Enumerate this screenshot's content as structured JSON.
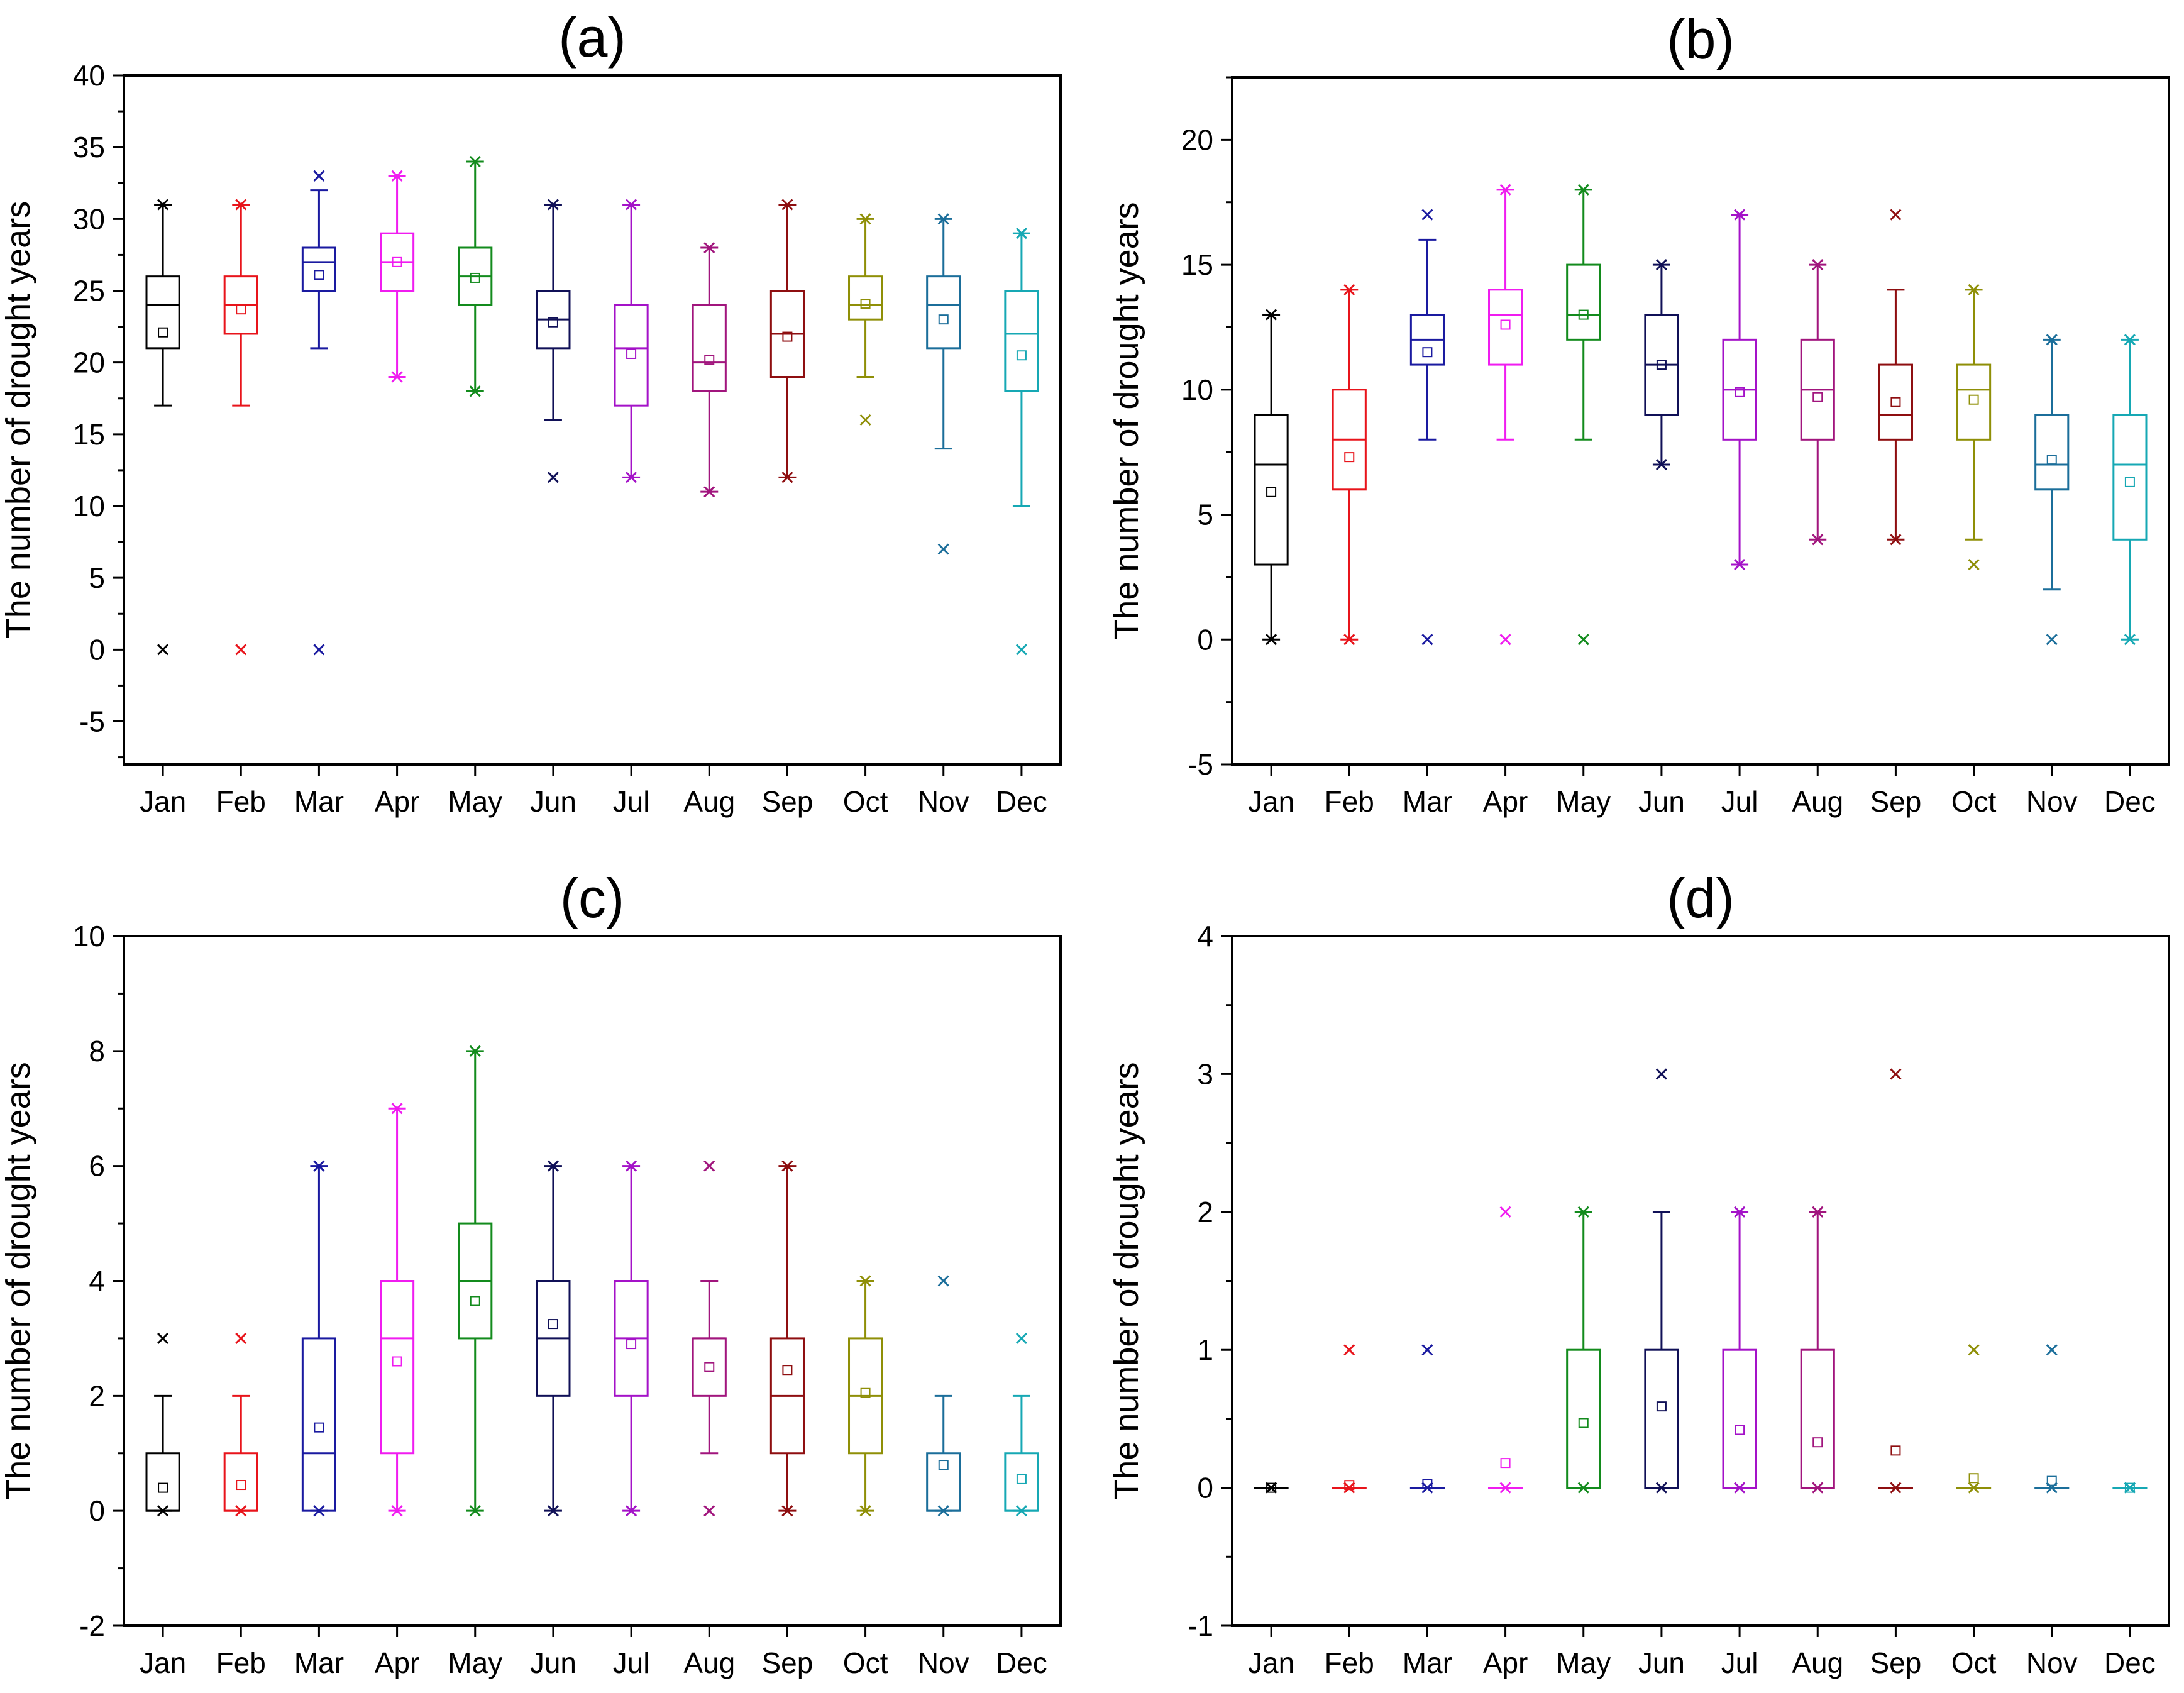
{
  "months": [
    "Jan",
    "Feb",
    "Mar",
    "Apr",
    "May",
    "Jun",
    "Jul",
    "Aug",
    "Sep",
    "Oct",
    "Nov",
    "Dec"
  ],
  "month_colors": [
    "#000000",
    "#e8141b",
    "#1a1aa0",
    "#f01cf0",
    "#138b1d",
    "#101057",
    "#a412c8",
    "#a1157d",
    "#8e0e10",
    "#8f8f07",
    "#1b6e9a",
    "#16a8b4"
  ],
  "chart_data": [
    {
      "type": "box",
      "title": "(a)",
      "ylabel": "The number of drought years",
      "ylim": [
        -8,
        40
      ],
      "yticks": [
        -5,
        0,
        5,
        10,
        15,
        20,
        25,
        30,
        35,
        40
      ],
      "boxes": [
        {
          "category": "Jan",
          "q1": 21,
          "median": 24,
          "q3": 26,
          "whisker_low": 17,
          "whisker_high": 31,
          "mean": 22.1,
          "extremes": [
            0,
            31
          ]
        },
        {
          "category": "Feb",
          "q1": 22,
          "median": 24,
          "q3": 26,
          "whisker_low": 17,
          "whisker_high": 31,
          "mean": 23.7,
          "extremes": [
            0,
            31
          ]
        },
        {
          "category": "Mar",
          "q1": 25,
          "median": 27,
          "q3": 28,
          "whisker_low": 21,
          "whisker_high": 32,
          "mean": 26.1,
          "extremes": [
            0,
            33
          ]
        },
        {
          "category": "Apr",
          "q1": 25,
          "median": 27,
          "q3": 29,
          "whisker_low": 19,
          "whisker_high": 33,
          "mean": 27,
          "extremes": [
            19,
            33
          ]
        },
        {
          "category": "May",
          "q1": 24,
          "median": 26,
          "q3": 28,
          "whisker_low": 18,
          "whisker_high": 34,
          "mean": 25.9,
          "extremes": [
            18,
            34
          ]
        },
        {
          "category": "Jun",
          "q1": 21,
          "median": 23,
          "q3": 25,
          "whisker_low": 16,
          "whisker_high": 31,
          "mean": 22.8,
          "extremes": [
            12,
            31
          ]
        },
        {
          "category": "Jul",
          "q1": 17,
          "median": 21,
          "q3": 24,
          "whisker_low": 12,
          "whisker_high": 31,
          "mean": 20.6,
          "extremes": [
            12,
            31
          ]
        },
        {
          "category": "Aug",
          "q1": 18,
          "median": 20,
          "q3": 24,
          "whisker_low": 11,
          "whisker_high": 28,
          "mean": 20.2,
          "extremes": [
            11,
            28
          ]
        },
        {
          "category": "Sep",
          "q1": 19,
          "median": 22,
          "q3": 25,
          "whisker_low": 12,
          "whisker_high": 31,
          "mean": 21.8,
          "extremes": [
            12,
            31
          ]
        },
        {
          "category": "Oct",
          "q1": 23,
          "median": 24,
          "q3": 26,
          "whisker_low": 19,
          "whisker_high": 30,
          "mean": 24.1,
          "extremes": [
            16,
            30
          ]
        },
        {
          "category": "Nov",
          "q1": 21,
          "median": 24,
          "q3": 26,
          "whisker_low": 14,
          "whisker_high": 30,
          "mean": 23,
          "extremes": [
            7,
            30
          ]
        },
        {
          "category": "Dec",
          "q1": 18,
          "median": 22,
          "q3": 25,
          "whisker_low": 10,
          "whisker_high": 29,
          "mean": 20.5,
          "extremes": [
            0,
            29
          ]
        }
      ]
    },
    {
      "type": "box",
      "title": "(b)",
      "ylabel": "The number of drought years",
      "ylim": [
        -5,
        22.5
      ],
      "yticks": [
        -5,
        0,
        5,
        10,
        15,
        20
      ],
      "boxes": [
        {
          "category": "Jan",
          "q1": 3,
          "median": 7,
          "q3": 9,
          "whisker_low": 0,
          "whisker_high": 13,
          "mean": 5.9,
          "extremes": [
            0,
            13
          ]
        },
        {
          "category": "Feb",
          "q1": 6,
          "median": 8,
          "q3": 10,
          "whisker_low": 0,
          "whisker_high": 14,
          "mean": 7.3,
          "extremes": [
            0,
            14
          ]
        },
        {
          "category": "Mar",
          "q1": 11,
          "median": 12,
          "q3": 13,
          "whisker_low": 8,
          "whisker_high": 16,
          "mean": 11.5,
          "extremes": [
            0,
            17
          ]
        },
        {
          "category": "Apr",
          "q1": 11,
          "median": 13,
          "q3": 14,
          "whisker_low": 8,
          "whisker_high": 18,
          "mean": 12.6,
          "extremes": [
            0,
            18
          ]
        },
        {
          "category": "May",
          "q1": 12,
          "median": 13,
          "q3": 15,
          "whisker_low": 8,
          "whisker_high": 18,
          "mean": 13,
          "extremes": [
            0,
            18
          ]
        },
        {
          "category": "Jun",
          "q1": 9,
          "median": 11,
          "q3": 13,
          "whisker_low": 7,
          "whisker_high": 15,
          "mean": 11,
          "extremes": [
            7,
            15
          ]
        },
        {
          "category": "Jul",
          "q1": 8,
          "median": 10,
          "q3": 12,
          "whisker_low": 3,
          "whisker_high": 17,
          "mean": 9.9,
          "extremes": [
            3,
            17
          ]
        },
        {
          "category": "Aug",
          "q1": 8,
          "median": 10,
          "q3": 12,
          "whisker_low": 4,
          "whisker_high": 15,
          "mean": 9.7,
          "extremes": [
            4,
            15
          ]
        },
        {
          "category": "Sep",
          "q1": 8,
          "median": 9,
          "q3": 11,
          "whisker_low": 4,
          "whisker_high": 14,
          "mean": 9.5,
          "extremes": [
            4,
            17
          ]
        },
        {
          "category": "Oct",
          "q1": 8,
          "median": 10,
          "q3": 11,
          "whisker_low": 4,
          "whisker_high": 14,
          "mean": 9.6,
          "extremes": [
            3,
            14
          ]
        },
        {
          "category": "Nov",
          "q1": 6,
          "median": 7,
          "q3": 9,
          "whisker_low": 2,
          "whisker_high": 12,
          "mean": 7.2,
          "extremes": [
            0,
            12
          ]
        },
        {
          "category": "Dec",
          "q1": 4,
          "median": 7,
          "q3": 9,
          "whisker_low": 0,
          "whisker_high": 12,
          "mean": 6.3,
          "extremes": [
            0,
            12
          ]
        }
      ]
    },
    {
      "type": "box",
      "title": "(c)",
      "ylabel": "The number of drought years",
      "ylim": [
        -2,
        10
      ],
      "yticks": [
        -2,
        0,
        2,
        4,
        6,
        8,
        10
      ],
      "boxes": [
        {
          "category": "Jan",
          "q1": 0,
          "median": 0,
          "q3": 1,
          "whisker_low": 0,
          "whisker_high": 2,
          "mean": 0.4,
          "extremes": [
            0,
            3
          ]
        },
        {
          "category": "Feb",
          "q1": 0,
          "median": 0,
          "q3": 1,
          "whisker_low": 0,
          "whisker_high": 2,
          "mean": 0.45,
          "extremes": [
            0,
            3
          ]
        },
        {
          "category": "Mar",
          "q1": 0,
          "median": 1,
          "q3": 3,
          "whisker_low": 0,
          "whisker_high": 6,
          "mean": 1.45,
          "extremes": [
            0,
            6
          ]
        },
        {
          "category": "Apr",
          "q1": 1,
          "median": 3,
          "q3": 4,
          "whisker_low": 0,
          "whisker_high": 7,
          "mean": 2.6,
          "extremes": [
            0,
            7
          ]
        },
        {
          "category": "May",
          "q1": 3,
          "median": 4,
          "q3": 5,
          "whisker_low": 0,
          "whisker_high": 8,
          "mean": 3.65,
          "extremes": [
            0,
            8
          ]
        },
        {
          "category": "Jun",
          "q1": 2,
          "median": 3,
          "q3": 4,
          "whisker_low": 0,
          "whisker_high": 6,
          "mean": 3.25,
          "extremes": [
            0,
            6
          ]
        },
        {
          "category": "Jul",
          "q1": 2,
          "median": 3,
          "q3": 4,
          "whisker_low": 0,
          "whisker_high": 6,
          "mean": 2.9,
          "extremes": [
            0,
            6
          ]
        },
        {
          "category": "Aug",
          "q1": 2,
          "median": 3,
          "q3": 3,
          "whisker_low": 1,
          "whisker_high": 4,
          "mean": 2.5,
          "extremes": [
            0,
            6
          ]
        },
        {
          "category": "Sep",
          "q1": 1,
          "median": 2,
          "q3": 3,
          "whisker_low": 0,
          "whisker_high": 6,
          "mean": 2.45,
          "extremes": [
            0,
            6
          ]
        },
        {
          "category": "Oct",
          "q1": 1,
          "median": 2,
          "q3": 3,
          "whisker_low": 0,
          "whisker_high": 4,
          "mean": 2.05,
          "extremes": [
            0,
            4
          ]
        },
        {
          "category": "Nov",
          "q1": 0,
          "median": 0,
          "q3": 1,
          "whisker_low": 0,
          "whisker_high": 2,
          "mean": 0.8,
          "extremes": [
            0,
            4
          ]
        },
        {
          "category": "Dec",
          "q1": 0,
          "median": 0,
          "q3": 1,
          "whisker_low": 0,
          "whisker_high": 2,
          "mean": 0.55,
          "extremes": [
            0,
            3
          ]
        }
      ]
    },
    {
      "type": "box",
      "title": "(d)",
      "ylabel": "The number of drought years",
      "ylim": [
        -1,
        4
      ],
      "yticks": [
        -1,
        0,
        1,
        2,
        3,
        4
      ],
      "boxes": [
        {
          "category": "Jan",
          "q1": 0,
          "median": 0,
          "q3": 0,
          "whisker_low": 0,
          "whisker_high": 0,
          "mean": 0,
          "extremes": [
            0,
            0
          ]
        },
        {
          "category": "Feb",
          "q1": 0,
          "median": 0,
          "q3": 0,
          "whisker_low": 0,
          "whisker_high": 0,
          "mean": 0.02,
          "extremes": [
            0,
            1
          ]
        },
        {
          "category": "Mar",
          "q1": 0,
          "median": 0,
          "q3": 0,
          "whisker_low": 0,
          "whisker_high": 0,
          "mean": 0.03,
          "extremes": [
            0,
            1
          ]
        },
        {
          "category": "Apr",
          "q1": 0,
          "median": 0,
          "q3": 0,
          "whisker_low": 0,
          "whisker_high": 0,
          "mean": 0.18,
          "extremes": [
            0,
            2
          ]
        },
        {
          "category": "May",
          "q1": 0,
          "median": 0,
          "q3": 1,
          "whisker_low": 0,
          "whisker_high": 2,
          "mean": 0.47,
          "extremes": [
            0,
            2
          ]
        },
        {
          "category": "Jun",
          "q1": 0,
          "median": 0,
          "q3": 1,
          "whisker_low": 0,
          "whisker_high": 2,
          "mean": 0.59,
          "extremes": [
            0,
            3
          ]
        },
        {
          "category": "Jul",
          "q1": 0,
          "median": 0,
          "q3": 1,
          "whisker_low": 0,
          "whisker_high": 2,
          "mean": 0.42,
          "extremes": [
            0,
            2
          ]
        },
        {
          "category": "Aug",
          "q1": 0,
          "median": 0,
          "q3": 1,
          "whisker_low": 0,
          "whisker_high": 2,
          "mean": 0.33,
          "extremes": [
            0,
            2
          ]
        },
        {
          "category": "Sep",
          "q1": 0,
          "median": 0,
          "q3": 0,
          "whisker_low": 0,
          "whisker_high": 0,
          "mean": 0.27,
          "extremes": [
            0,
            3
          ]
        },
        {
          "category": "Oct",
          "q1": 0,
          "median": 0,
          "q3": 0,
          "whisker_low": 0,
          "whisker_high": 0,
          "mean": 0.07,
          "extremes": [
            0,
            1
          ]
        },
        {
          "category": "Nov",
          "q1": 0,
          "median": 0,
          "q3": 0,
          "whisker_low": 0,
          "whisker_high": 0,
          "mean": 0.05,
          "extremes": [
            0,
            1
          ]
        },
        {
          "category": "Dec",
          "q1": 0,
          "median": 0,
          "q3": 0,
          "whisker_low": 0,
          "whisker_high": 0,
          "mean": 0,
          "extremes": [
            0,
            0
          ]
        }
      ]
    }
  ]
}
